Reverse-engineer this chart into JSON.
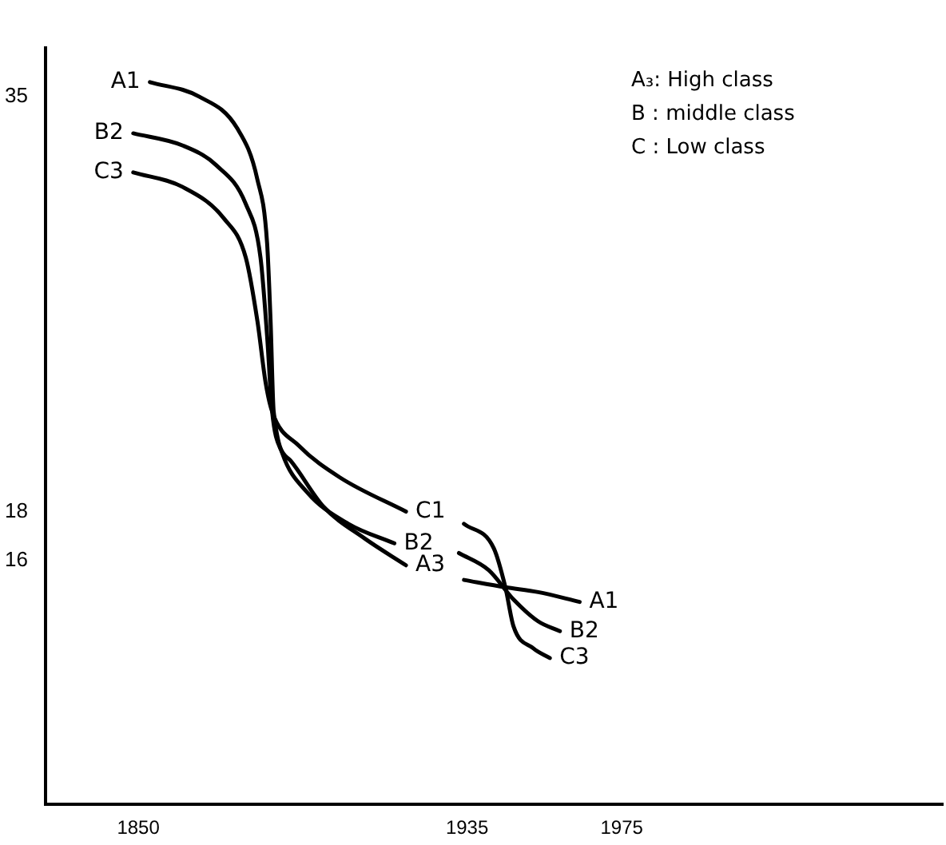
{
  "chart_data": {
    "type": "line",
    "xlim": [
      1826,
      2058
    ],
    "ylim": [
      6,
      37
    ],
    "xticks": [
      1850,
      1935,
      1975
    ],
    "yticks": [
      16,
      18,
      35
    ],
    "grid": false,
    "legend": false,
    "marker": "none",
    "line_style": "solid",
    "series": [
      {
        "color": "#000000",
        "x": [
          1853.0,
          1865.8,
          1875.6,
          1880.8,
          1883.3,
          1884.2,
          1885.0,
          1889.3,
          1897.9,
          1908.5,
          1919.2,
          null,
          1934.2,
          1944.9,
          1953.4,
          1964.1
        ],
        "values": [
          35.6,
          35.0,
          33.7,
          31.6,
          29.0,
          25.8,
          22.1,
          20.1,
          18.2,
          16.9,
          15.8,
          null,
          15.2,
          14.9,
          14.7,
          14.3
        ]
      },
      {
        "color": "#000000",
        "x": [
          1848.7,
          1861.5,
          1870.1,
          1877.8,
          1881.6,
          1883.3,
          1884.6,
          1887.2,
          1893.6,
          1904.3,
          1916.2,
          null,
          1932.9,
          1940.6,
          1947.0,
          1953.4,
          1959.0
        ],
        "values": [
          33.5,
          33.0,
          32.2,
          30.6,
          28.4,
          25.2,
          22.1,
          20.4,
          18.8,
          17.5,
          16.7,
          null,
          16.3,
          15.6,
          14.4,
          13.5,
          13.1
        ]
      },
      {
        "color": "#000000",
        "x": [
          1848.7,
          1861.5,
          1872.2,
          1877.8,
          1880.8,
          1882.9,
          1884.6,
          1891.5,
          1902.1,
          1919.2,
          null,
          1934.2,
          1941.9,
          1944.9,
          1947.0,
          1952.1,
          1956.4
        ],
        "values": [
          31.9,
          31.3,
          30.0,
          28.4,
          25.8,
          23.3,
          22.1,
          20.7,
          19.4,
          18.0,
          null,
          17.5,
          16.5,
          14.9,
          13.3,
          12.4,
          12.0
        ]
      }
    ],
    "annotations": [
      {
        "text": "A1",
        "x": 1853.0,
        "y": 35.6
      },
      {
        "text": "B2",
        "x": 1848.7,
        "y": 33.5
      },
      {
        "text": "C3",
        "x": 1848.7,
        "y": 31.9
      },
      {
        "text": "C1",
        "x": 1919.2,
        "y": 18.0
      },
      {
        "text": "B2",
        "x": 1916.2,
        "y": 16.7
      },
      {
        "text": "A3",
        "x": 1919.2,
        "y": 15.8
      },
      {
        "text": "A1",
        "x": 1964.1,
        "y": 14.3
      },
      {
        "text": "B2",
        "x": 1959.0,
        "y": 13.1
      },
      {
        "text": "C3",
        "x": 1956.4,
        "y": 12.0
      },
      "A₃:  High class",
      "B :  middle class",
      "C :  Low class"
    ]
  }
}
